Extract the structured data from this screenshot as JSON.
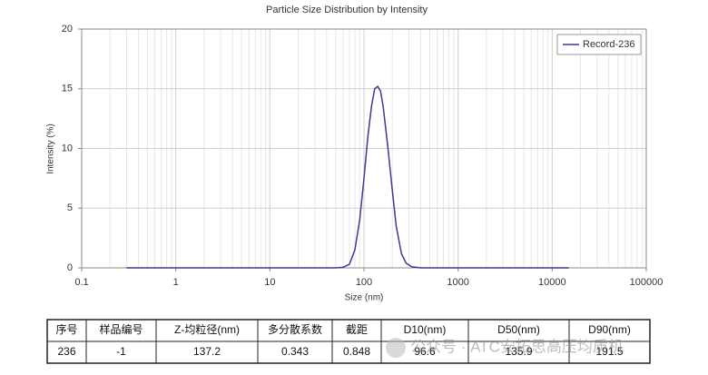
{
  "chart_data": {
    "type": "line",
    "title": "Particle Size Distribution by Intensity",
    "x_label": "Size (nm)",
    "y_label": "Intensity (%)",
    "x": [
      0.3,
      1,
      10,
      50,
      60,
      70,
      80,
      90,
      100,
      110,
      120,
      130,
      140,
      150,
      160,
      180,
      200,
      220,
      250,
      280,
      320,
      400,
      1000,
      15000
    ],
    "series": [
      {
        "name": "Record-236",
        "color": "#3b3b8f",
        "values": [
          0,
          0,
          0,
          0,
          0.05,
          0.3,
          1.5,
          4,
          7.5,
          11,
          13.5,
          15,
          15.2,
          14.8,
          13.5,
          10,
          6.5,
          3.5,
          1.2,
          0.4,
          0.1,
          0,
          0,
          0
        ]
      }
    ],
    "xlim": [
      0.1,
      100000
    ],
    "xticks": [
      0.1,
      1,
      10,
      100,
      1000,
      10000,
      100000
    ],
    "x_log": true,
    "ylim": [
      0,
      20
    ],
    "yticks": [
      0,
      5,
      10,
      15,
      20
    ],
    "grid": true,
    "minor_grid": true,
    "legend": "upper right"
  },
  "table": {
    "header": [
      "序号",
      "样品编号",
      "Z-均粒径(nm)",
      "多分散系数",
      "截距",
      "D10(nm)",
      "D50(nm)",
      "D90(nm)"
    ],
    "rows": [
      [
        236,
        -1,
        137.2,
        0.343,
        0.848,
        96.6,
        135.9,
        191.5
      ]
    ]
  },
  "watermark": "公众号 · ATC安拓思高压均质机"
}
